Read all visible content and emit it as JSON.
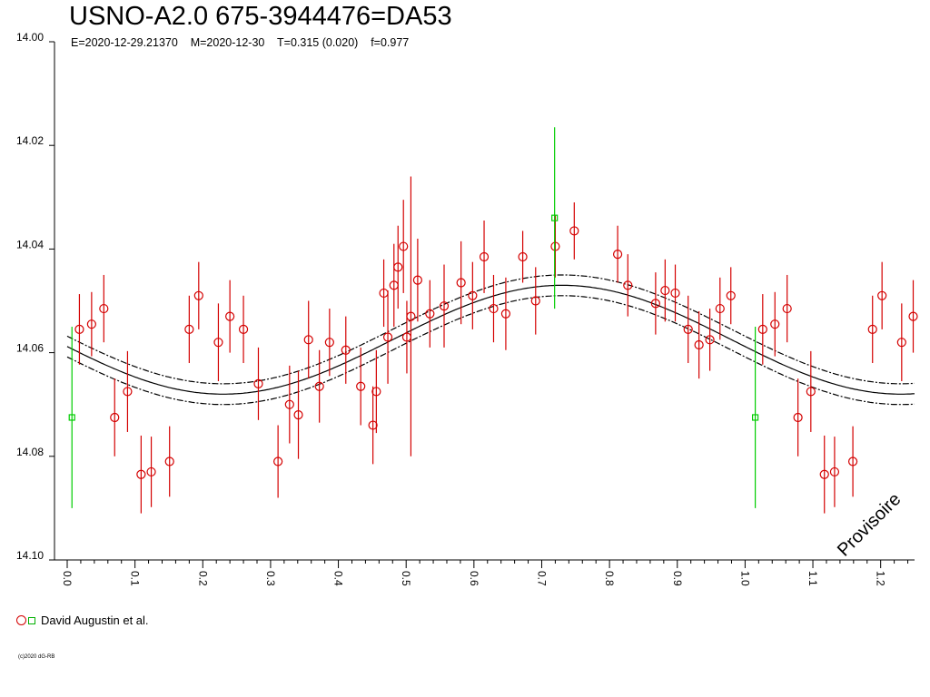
{
  "header": {
    "title": "USNO-A2.0 675-3944476=DA53",
    "subtitle": "E=2020-12-29.21370    M=2020-12-30    T=0.315 (0.020)    f=0.977"
  },
  "legend": {
    "label": "David Augustin et al."
  },
  "copyright": "(c)2020 dG-RB",
  "colors": {
    "primary": "#d40000",
    "secondary": "#00cc00",
    "model": "#000000"
  },
  "chart_data": {
    "type": "scatter",
    "x_label": "",
    "y_label": "",
    "y_inverted": true,
    "xlim": [
      0.0,
      1.25
    ],
    "ylim": [
      14.0,
      14.1
    ],
    "x_ticks": [
      "0.0",
      "0.1",
      "0.2",
      "0.3",
      "0.4",
      "0.5",
      "0.6",
      "0.7",
      "0.8",
      "0.9",
      "1.0",
      "1.1",
      "1.2"
    ],
    "y_ticks": [
      "14.00",
      "14.02",
      "14.04",
      "14.06",
      "14.08",
      "14.10"
    ],
    "watermark": "Provisoire",
    "model": {
      "name": "sine fit",
      "mean_mag": 14.0575,
      "amplitude": 0.0105,
      "max_phase": 0.73,
      "envelope": 0.002
    },
    "series": [
      {
        "name": "David Augustin et al.",
        "marker": "circle",
        "color": "#d40000",
        "points": [
          [
            0.018,
            14.0555,
            0.0068
          ],
          [
            0.036,
            14.0545,
            0.0062
          ],
          [
            0.054,
            14.0515,
            0.0065
          ],
          [
            0.07,
            14.0725,
            0.0075
          ],
          [
            0.089,
            14.0675,
            0.0078
          ],
          [
            0.109,
            14.0835,
            0.0075
          ],
          [
            0.124,
            14.083,
            0.0068
          ],
          [
            0.151,
            14.081,
            0.0068
          ],
          [
            0.18,
            14.0555,
            0.0065
          ],
          [
            0.194,
            14.049,
            0.0065
          ],
          [
            0.223,
            14.058,
            0.0075
          ],
          [
            0.24,
            14.053,
            0.007
          ],
          [
            0.26,
            14.0555,
            0.0065
          ],
          [
            0.282,
            14.066,
            0.007
          ],
          [
            0.311,
            14.081,
            0.007
          ],
          [
            0.328,
            14.07,
            0.0075
          ],
          [
            0.341,
            14.072,
            0.0085
          ],
          [
            0.356,
            14.0575,
            0.0075
          ],
          [
            0.372,
            14.0665,
            0.007
          ],
          [
            0.387,
            14.058,
            0.0065
          ],
          [
            0.411,
            14.0595,
            0.0065
          ],
          [
            0.433,
            14.0665,
            0.0075
          ],
          [
            0.451,
            14.074,
            0.0075
          ],
          [
            0.456,
            14.0675,
            0.008
          ],
          [
            0.467,
            14.0485,
            0.0065
          ],
          [
            0.473,
            14.057,
            0.009
          ],
          [
            0.482,
            14.047,
            0.008
          ],
          [
            0.488,
            14.0435,
            0.008
          ],
          [
            0.496,
            14.0395,
            0.009
          ],
          [
            0.501,
            14.057,
            0.007
          ],
          [
            0.507,
            14.053,
            0.027
          ],
          [
            0.517,
            14.046,
            0.008
          ],
          [
            0.535,
            14.0525,
            0.0065
          ],
          [
            0.556,
            14.051,
            0.008
          ],
          [
            0.581,
            14.0465,
            0.008
          ],
          [
            0.598,
            14.049,
            0.0065
          ],
          [
            0.615,
            14.0415,
            0.007
          ],
          [
            0.629,
            14.0515,
            0.0065
          ],
          [
            0.647,
            14.0525,
            0.007
          ],
          [
            0.672,
            14.0415,
            0.005
          ],
          [
            0.691,
            14.05,
            0.0065
          ],
          [
            0.72,
            14.0395,
            0.006
          ],
          [
            0.748,
            14.0365,
            0.0055
          ],
          [
            0.812,
            14.041,
            0.0055
          ],
          [
            0.827,
            14.047,
            0.006
          ],
          [
            0.868,
            14.0505,
            0.006
          ],
          [
            0.882,
            14.048,
            0.006
          ],
          [
            0.897,
            14.0485,
            0.0055
          ],
          [
            0.916,
            14.0555,
            0.0065
          ],
          [
            0.932,
            14.0585,
            0.0065
          ],
          [
            0.948,
            14.0575,
            0.006
          ],
          [
            0.963,
            14.0515,
            0.006
          ],
          [
            0.979,
            14.049,
            0.0055
          ],
          [
            1.026,
            14.0555,
            0.0068
          ],
          [
            1.044,
            14.0545,
            0.0062
          ],
          [
            1.062,
            14.0515,
            0.0065
          ],
          [
            1.078,
            14.0725,
            0.0075
          ],
          [
            1.097,
            14.0675,
            0.0078
          ],
          [
            1.117,
            14.0835,
            0.0075
          ],
          [
            1.132,
            14.083,
            0.0068
          ],
          [
            1.159,
            14.081,
            0.0068
          ],
          [
            1.188,
            14.0555,
            0.0065
          ],
          [
            1.202,
            14.049,
            0.0065
          ],
          [
            1.231,
            14.058,
            0.0075
          ],
          [
            1.248,
            14.053,
            0.007
          ]
        ]
      },
      {
        "name": "David Augustin et al.",
        "marker": "square",
        "color": "#00cc00",
        "points": [
          [
            0.007,
            14.0725,
            0.0175
          ],
          [
            0.719,
            14.034,
            0.0175
          ],
          [
            1.015,
            14.0725,
            0.0175
          ]
        ]
      }
    ]
  }
}
